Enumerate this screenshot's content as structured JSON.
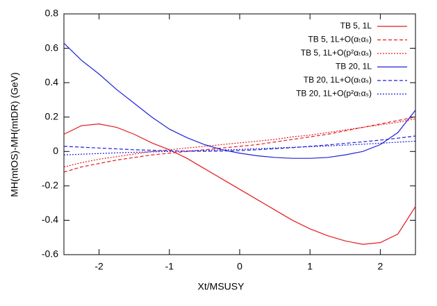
{
  "chart_data": {
    "type": "line",
    "x_label": "Xt/MSUSY",
    "y_label": "MH(mtOS)-MH(mtDR) (GeV)",
    "x": [
      -2.5,
      -2.25,
      -2.0,
      -1.75,
      -1.5,
      -1.25,
      -1.0,
      -0.75,
      -0.5,
      -0.25,
      0.0,
      0.25,
      0.5,
      0.75,
      1.0,
      1.25,
      1.5,
      1.75,
      2.0,
      2.25,
      2.5
    ],
    "xlim": [
      -2.5,
      2.5
    ],
    "xticks": [
      -2,
      -1,
      0,
      1,
      2
    ],
    "ylim": [
      -0.6,
      0.8
    ],
    "yticks": [
      -0.6,
      -0.4,
      -0.2,
      0,
      0.2,
      0.4,
      0.6,
      0.8
    ],
    "grid": false,
    "legend": "top-right",
    "series": [
      {
        "name": "TB 5, 1L",
        "color": "#e31a1c",
        "dash": "solid",
        "values": [
          0.1,
          0.15,
          0.16,
          0.14,
          0.1,
          0.05,
          0.01,
          -0.04,
          -0.1,
          -0.16,
          -0.22,
          -0.28,
          -0.34,
          -0.4,
          -0.45,
          -0.49,
          -0.52,
          -0.54,
          -0.53,
          -0.48,
          -0.32
        ]
      },
      {
        "name": "TB 5, 1L+O(αₜαₛ)",
        "color": "#e31a1c",
        "dash": "dashed",
        "values": [
          -0.12,
          -0.09,
          -0.07,
          -0.05,
          -0.035,
          -0.02,
          -0.01,
          0.0,
          0.01,
          0.02,
          0.03,
          0.04,
          0.055,
          0.07,
          0.085,
          0.1,
          0.12,
          0.14,
          0.16,
          0.18,
          0.2
        ]
      },
      {
        "name": "TB 5, 1L+O(p²αₜαₛ)",
        "color": "#e31a1c",
        "dash": "dotted",
        "values": [
          -0.09,
          -0.065,
          -0.045,
          -0.03,
          -0.015,
          0.0,
          0.01,
          0.02,
          0.03,
          0.04,
          0.05,
          0.06,
          0.07,
          0.085,
          0.095,
          0.11,
          0.125,
          0.14,
          0.155,
          0.17,
          0.19
        ]
      },
      {
        "name": "TB 20, 1L",
        "color": "#1f1fdc",
        "dash": "solid",
        "values": [
          0.63,
          0.53,
          0.45,
          0.36,
          0.28,
          0.2,
          0.13,
          0.08,
          0.04,
          0.01,
          -0.01,
          -0.025,
          -0.035,
          -0.04,
          -0.04,
          -0.035,
          -0.02,
          0.0,
          0.04,
          0.11,
          0.24
        ]
      },
      {
        "name": "TB 20, 1L+O(αₜαₛ)",
        "color": "#1f1fdc",
        "dash": "dashed",
        "values": [
          0.03,
          0.025,
          0.02,
          0.015,
          0.01,
          0.007,
          0.004,
          0.002,
          0.001,
          0.002,
          0.005,
          0.01,
          0.016,
          0.022,
          0.03,
          0.038,
          0.047,
          0.056,
          0.066,
          0.077,
          0.09
        ]
      },
      {
        "name": "TB 20, 1L+O(p²αₜαₛ)",
        "color": "#1f1fdc",
        "dash": "dotted",
        "values": [
          -0.02,
          -0.016,
          -0.012,
          -0.008,
          -0.005,
          -0.002,
          0.0,
          0.003,
          0.006,
          0.009,
          0.012,
          0.016,
          0.02,
          0.024,
          0.028,
          0.032,
          0.037,
          0.042,
          0.048,
          0.054,
          0.06
        ]
      }
    ]
  }
}
